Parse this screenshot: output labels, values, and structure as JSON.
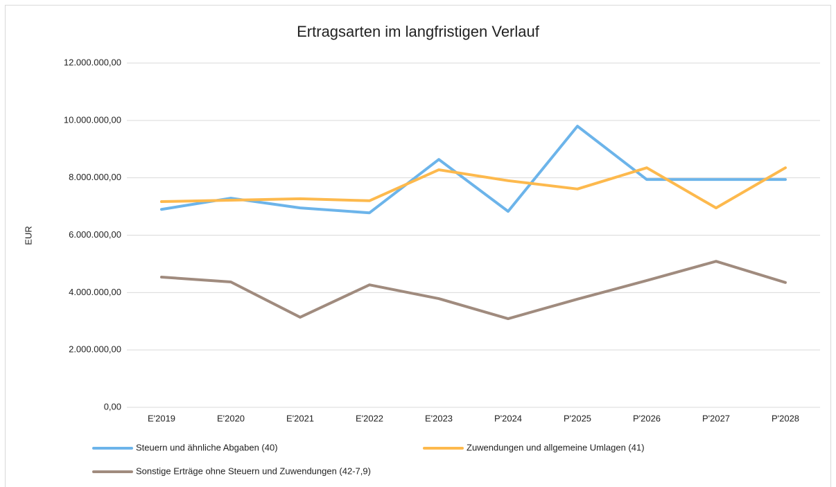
{
  "chart_data": {
    "type": "line",
    "title": "Ertragsarten im langfristigen Verlauf",
    "y_label": "EUR",
    "categories": [
      "E'2019",
      "E'2020",
      "E'2021",
      "E'2022",
      "E'2023",
      "P'2024",
      "P'2025",
      "P'2026",
      "P'2027",
      "P'2028"
    ],
    "series": [
      {
        "name": "Steuern und ähnliche Abgaben (40)",
        "color": "#6cb4ea",
        "values": [
          6900000,
          7290000,
          6950000,
          6780000,
          8640000,
          6830000,
          9800000,
          7940000,
          7940000,
          7940000
        ]
      },
      {
        "name": "Zuwendungen und allgemeine Umlagen (41)",
        "color": "#fdb94d",
        "values": [
          7170000,
          7220000,
          7270000,
          7200000,
          8280000,
          7900000,
          7610000,
          8350000,
          6950000,
          8350000
        ]
      },
      {
        "name": "Sonstige Erträge ohne Steuern und Zuwendungen (42-7,9)",
        "color": "#a08b7e",
        "values": [
          4540000,
          4370000,
          3140000,
          4270000,
          3790000,
          3090000,
          3770000,
          4420000,
          5090000,
          4350000
        ]
      }
    ],
    "ylim": [
      0,
      12000000
    ],
    "yticks": [
      {
        "value": 0,
        "label": "0,00"
      },
      {
        "value": 2000000,
        "label": "2.000.000,00"
      },
      {
        "value": 4000000,
        "label": "4.000.000,00"
      },
      {
        "value": 6000000,
        "label": "6.000.000,00"
      },
      {
        "value": 8000000,
        "label": "8.000.000,00"
      },
      {
        "value": 10000000,
        "label": "10.000.000,00"
      },
      {
        "value": 12000000,
        "label": "12.000.000,00"
      }
    ],
    "grid": true,
    "legend": "bottom"
  }
}
